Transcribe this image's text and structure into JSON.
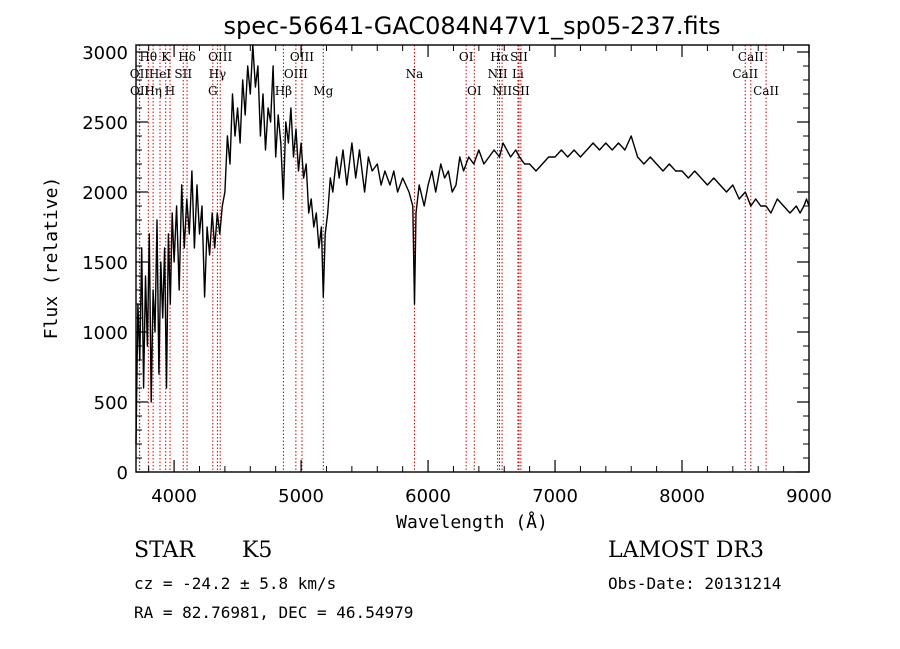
{
  "chart_data": {
    "type": "line",
    "title": "spec-56641-GAC084N47V1_sp05-237.fits",
    "xlabel": "Wavelength (Å)",
    "ylabel": "Flux (relative)",
    "xlim": [
      3700,
      9000
    ],
    "ylim": [
      0,
      3050
    ],
    "xticks": [
      4000,
      5000,
      6000,
      7000,
      8000,
      9000
    ],
    "yticks": [
      0,
      500,
      1000,
      1500,
      2000,
      2500,
      3000
    ],
    "series": [
      {
        "name": "flux",
        "points": [
          [
            3700,
            200
          ],
          [
            3715,
            1200
          ],
          [
            3730,
            800
          ],
          [
            3745,
            1600
          ],
          [
            3760,
            600
          ],
          [
            3775,
            1400
          ],
          [
            3790,
            900
          ],
          [
            3805,
            1700
          ],
          [
            3820,
            500
          ],
          [
            3835,
            1300
          ],
          [
            3850,
            1000
          ],
          [
            3865,
            1800
          ],
          [
            3880,
            700
          ],
          [
            3895,
            1500
          ],
          [
            3910,
            1100
          ],
          [
            3925,
            1600
          ],
          [
            3940,
            600
          ],
          [
            3955,
            1700
          ],
          [
            3970,
            1200
          ],
          [
            3985,
            1850
          ],
          [
            4000,
            1500
          ],
          [
            4020,
            1900
          ],
          [
            4040,
            1300
          ],
          [
            4060,
            2050
          ],
          [
            4080,
            1600
          ],
          [
            4100,
            1950
          ],
          [
            4120,
            1700
          ],
          [
            4140,
            2150
          ],
          [
            4160,
            1600
          ],
          [
            4180,
            2050
          ],
          [
            4200,
            1700
          ],
          [
            4220,
            1900
          ],
          [
            4240,
            1250
          ],
          [
            4260,
            1750
          ],
          [
            4280,
            1550
          ],
          [
            4300,
            1850
          ],
          [
            4320,
            1600
          ],
          [
            4340,
            1850
          ],
          [
            4360,
            1700
          ],
          [
            4380,
            1900
          ],
          [
            4400,
            2000
          ],
          [
            4420,
            2400
          ],
          [
            4440,
            2200
          ],
          [
            4460,
            2700
          ],
          [
            4480,
            2400
          ],
          [
            4500,
            2600
          ],
          [
            4520,
            2350
          ],
          [
            4540,
            2800
          ],
          [
            4560,
            2550
          ],
          [
            4580,
            2900
          ],
          [
            4600,
            2700
          ],
          [
            4620,
            3050
          ],
          [
            4640,
            2750
          ],
          [
            4660,
            2900
          ],
          [
            4680,
            2400
          ],
          [
            4700,
            2700
          ],
          [
            4720,
            2300
          ],
          [
            4740,
            2600
          ],
          [
            4760,
            2500
          ],
          [
            4780,
            2900
          ],
          [
            4800,
            2250
          ],
          [
            4820,
            2550
          ],
          [
            4840,
            2350
          ],
          [
            4860,
            1950
          ],
          [
            4880,
            2500
          ],
          [
            4900,
            2350
          ],
          [
            4920,
            2600
          ],
          [
            4940,
            2250
          ],
          [
            4960,
            2450
          ],
          [
            4980,
            2150
          ],
          [
            5000,
            2350
          ],
          [
            5020,
            2100
          ],
          [
            5040,
            2200
          ],
          [
            5060,
            1850
          ],
          [
            5080,
            1950
          ],
          [
            5100,
            1750
          ],
          [
            5120,
            1850
          ],
          [
            5140,
            1600
          ],
          [
            5160,
            1750
          ],
          [
            5175,
            1250
          ],
          [
            5190,
            1700
          ],
          [
            5210,
            1850
          ],
          [
            5230,
            2100
          ],
          [
            5250,
            2000
          ],
          [
            5280,
            2250
          ],
          [
            5300,
            2100
          ],
          [
            5330,
            2300
          ],
          [
            5360,
            2050
          ],
          [
            5400,
            2350
          ],
          [
            5430,
            2100
          ],
          [
            5460,
            2300
          ],
          [
            5500,
            2000
          ],
          [
            5530,
            2250
          ],
          [
            5560,
            2150
          ],
          [
            5600,
            2200
          ],
          [
            5630,
            2050
          ],
          [
            5660,
            2150
          ],
          [
            5700,
            2050
          ],
          [
            5730,
            2150
          ],
          [
            5760,
            2000
          ],
          [
            5800,
            2100
          ],
          [
            5850,
            2000
          ],
          [
            5880,
            1900
          ],
          [
            5893,
            1200
          ],
          [
            5905,
            1850
          ],
          [
            5930,
            2050
          ],
          [
            5970,
            1900
          ],
          [
            6000,
            2050
          ],
          [
            6030,
            2150
          ],
          [
            6060,
            2000
          ],
          [
            6100,
            2200
          ],
          [
            6130,
            2100
          ],
          [
            6160,
            2150
          ],
          [
            6190,
            2000
          ],
          [
            6220,
            2050
          ],
          [
            6250,
            2250
          ],
          [
            6280,
            2150
          ],
          [
            6320,
            2250
          ],
          [
            6360,
            2200
          ],
          [
            6400,
            2300
          ],
          [
            6440,
            2200
          ],
          [
            6480,
            2250
          ],
          [
            6520,
            2300
          ],
          [
            6563,
            2250
          ],
          [
            6590,
            2350
          ],
          [
            6620,
            2300
          ],
          [
            6650,
            2250
          ],
          [
            6690,
            2300
          ],
          [
            6720,
            2250
          ],
          [
            6760,
            2200
          ],
          [
            6800,
            2200
          ],
          [
            6850,
            2150
          ],
          [
            6900,
            2200
          ],
          [
            6950,
            2250
          ],
          [
            7000,
            2250
          ],
          [
            7050,
            2300
          ],
          [
            7100,
            2250
          ],
          [
            7150,
            2300
          ],
          [
            7200,
            2250
          ],
          [
            7250,
            2300
          ],
          [
            7300,
            2350
          ],
          [
            7350,
            2300
          ],
          [
            7400,
            2350
          ],
          [
            7450,
            2300
          ],
          [
            7500,
            2350
          ],
          [
            7550,
            2300
          ],
          [
            7600,
            2400
          ],
          [
            7650,
            2250
          ],
          [
            7700,
            2200
          ],
          [
            7750,
            2250
          ],
          [
            7800,
            2200
          ],
          [
            7850,
            2150
          ],
          [
            7900,
            2200
          ],
          [
            7950,
            2150
          ],
          [
            8000,
            2150
          ],
          [
            8050,
            2100
          ],
          [
            8100,
            2150
          ],
          [
            8150,
            2100
          ],
          [
            8200,
            2050
          ],
          [
            8250,
            2100
          ],
          [
            8300,
            2050
          ],
          [
            8350,
            2000
          ],
          [
            8400,
            2050
          ],
          [
            8450,
            1950
          ],
          [
            8498,
            2000
          ],
          [
            8542,
            1900
          ],
          [
            8580,
            1950
          ],
          [
            8620,
            1900
          ],
          [
            8662,
            1900
          ],
          [
            8700,
            1850
          ],
          [
            8750,
            1950
          ],
          [
            8800,
            1900
          ],
          [
            8850,
            1850
          ],
          [
            8900,
            1900
          ],
          [
            8930,
            1850
          ],
          [
            8960,
            1900
          ],
          [
            8980,
            1950
          ],
          [
            9000,
            1900
          ]
        ]
      }
    ],
    "spectral_lines": [
      {
        "label": "Hθ",
        "wavelength": 3797,
        "row": 1
      },
      {
        "label": "OII",
        "wavelength": 3727,
        "row": 2
      },
      {
        "label": "OII",
        "wavelength": 3729,
        "row": 3
      },
      {
        "label": "Hη",
        "wavelength": 3835,
        "row": 3
      },
      {
        "label": "HeI",
        "wavelength": 3889,
        "row": 2
      },
      {
        "label": "K",
        "wavelength": 3934,
        "row": 1
      },
      {
        "label": "H",
        "wavelength": 3968,
        "row": 3
      },
      {
        "label": "SII",
        "wavelength": 4072,
        "row": 2
      },
      {
        "label": "Hδ",
        "wavelength": 4102,
        "row": 1
      },
      {
        "label": "OIII",
        "wavelength": 4363,
        "row": 1
      },
      {
        "label": "Hγ",
        "wavelength": 4341,
        "row": 2
      },
      {
        "label": "G",
        "wavelength": 4305,
        "row": 3
      },
      {
        "label": "Hβ",
        "wavelength": 4861,
        "row": 3
      },
      {
        "label": "OIII",
        "wavelength": 5007,
        "row": 1
      },
      {
        "label": "OIII",
        "wavelength": 4959,
        "row": 2
      },
      {
        "label": "Mg",
        "wavelength": 5175,
        "row": 3
      },
      {
        "label": "Na",
        "wavelength": 5893,
        "row": 2
      },
      {
        "label": "OI",
        "wavelength": 6300,
        "row": 1
      },
      {
        "label": "OI",
        "wavelength": 6364,
        "row": 3
      },
      {
        "label": "Hα",
        "wavelength": 6563,
        "row": 1
      },
      {
        "label": "NII",
        "wavelength": 6548,
        "row": 2
      },
      {
        "label": "NII",
        "wavelength": 6583,
        "row": 3
      },
      {
        "label": "SII",
        "wavelength": 6716,
        "row": 1
      },
      {
        "label": "Li",
        "wavelength": 6708,
        "row": 2
      },
      {
        "label": "SII",
        "wavelength": 6731,
        "row": 3
      },
      {
        "label": "CaII",
        "wavelength": 8542,
        "row": 1
      },
      {
        "label": "CaII",
        "wavelength": 8498,
        "row": 2
      },
      {
        "label": "CaII",
        "wavelength": 8662,
        "row": 3
      }
    ],
    "colors": {
      "line": "#000000",
      "marker": "#cc0000"
    }
  },
  "info": {
    "class_text": "STAR",
    "subclass": "K5",
    "redshift": "cz = -24.2 ± 5.8 km/s",
    "coords": "RA =  82.76981, DEC =  46.54979",
    "survey": "LAMOST DR3",
    "obs_date": "Obs-Date: 20131214"
  }
}
